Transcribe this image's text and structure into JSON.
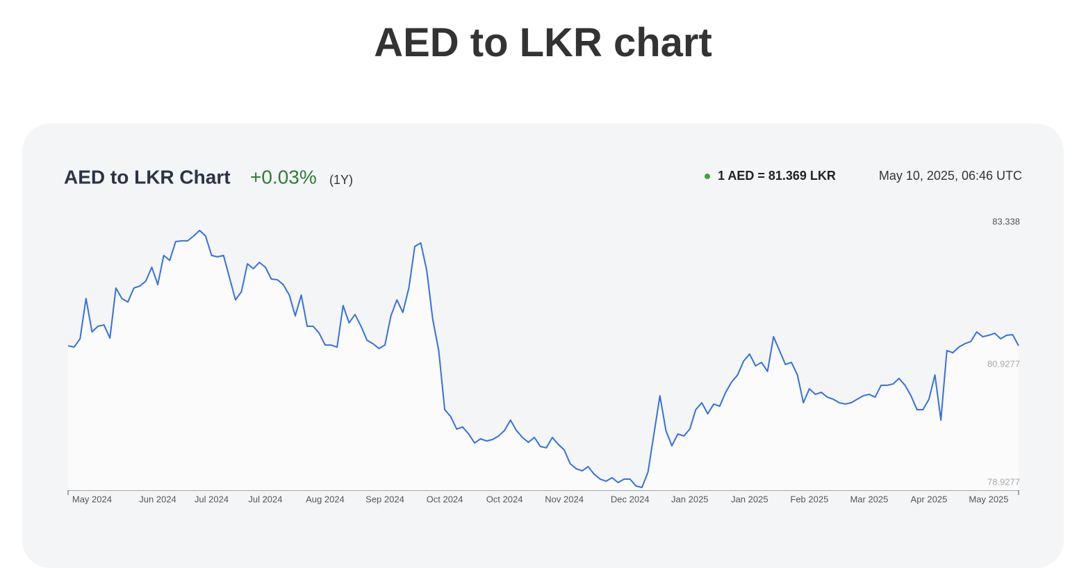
{
  "page_title": "AED to LKR chart",
  "chart_data": {
    "type": "line",
    "title": "AED to LKR Chart",
    "change": "+0.03%",
    "period": "(1Y)",
    "rate": "1 AED = 81.369 LKR",
    "timestamp": "May 10, 2025, 06:46 UTC",
    "ylim": [
      78.798,
      83.338
    ],
    "yticks": [
      83.338,
      80.9277,
      78.9277
    ],
    "categories": [
      null,
      null,
      null,
      null,
      "May 2024",
      null,
      null,
      null,
      null,
      null,
      null,
      null,
      null,
      null,
      null,
      "Jun 2024",
      null,
      null,
      null,
      null,
      null,
      null,
      null,
      null,
      "Jul 2024",
      null,
      null,
      null,
      null,
      null,
      null,
      null,
      null,
      "Jul 2024",
      null,
      null,
      null,
      null,
      null,
      null,
      null,
      null,
      null,
      "Aug 2024",
      null,
      null,
      null,
      null,
      null,
      null,
      null,
      null,
      null,
      "Sep 2024",
      null,
      null,
      null,
      null,
      null,
      null,
      null,
      null,
      null,
      "Oct 2024",
      null,
      null,
      null,
      null,
      null,
      null,
      null,
      null,
      null,
      "Oct 2024",
      null,
      null,
      null,
      null,
      null,
      null,
      null,
      null,
      null,
      "Nov 2024",
      null,
      null,
      null,
      null,
      null,
      null,
      null,
      null,
      null,
      null,
      "Dec 2024",
      null,
      null,
      null,
      null,
      null,
      null,
      null,
      null,
      null,
      "Jan 2025",
      null,
      null,
      null,
      null,
      null,
      null,
      null,
      null,
      null,
      "Jan 2025",
      null,
      null,
      null,
      null,
      null,
      null,
      null,
      null,
      null,
      "Feb 2025",
      null,
      null,
      null,
      null,
      null,
      null,
      null,
      null,
      null,
      "Mar 2025",
      null,
      null,
      null,
      null,
      null,
      null,
      null,
      null,
      null,
      "Apr 2025",
      null,
      null,
      null,
      null,
      null,
      null,
      null,
      null,
      null,
      "May 2025",
      null,
      null,
      null,
      null,
      null
    ],
    "series": [
      {
        "name": "AED to LKR",
        "color": "#3470de",
        "values": [
          81.245,
          81.222,
          81.363,
          82.045,
          81.48,
          81.575,
          81.598,
          81.375,
          82.222,
          82.045,
          81.986,
          82.222,
          82.257,
          82.339,
          82.575,
          82.28,
          82.775,
          82.692,
          83.01,
          83.022,
          83.022,
          83.104,
          83.198,
          83.104,
          82.775,
          82.751,
          82.775,
          82.398,
          82.022,
          82.163,
          82.633,
          82.551,
          82.657,
          82.575,
          82.375,
          82.363,
          82.28,
          82.104,
          81.751,
          82.104,
          81.575,
          81.575,
          81.457,
          81.257,
          81.257,
          81.222,
          81.927,
          81.633,
          81.775,
          81.575,
          81.339,
          81.28,
          81.198,
          81.257,
          81.751,
          82.022,
          81.81,
          82.222,
          82.928,
          82.986,
          82.516,
          81.692,
          81.163,
          80.163,
          80.045,
          79.833,
          79.869,
          79.751,
          79.598,
          79.669,
          79.633,
          79.657,
          79.716,
          79.81,
          79.986,
          79.81,
          79.692,
          79.61,
          79.692,
          79.539,
          79.516,
          79.692,
          79.574,
          79.48,
          79.245,
          79.163,
          79.127,
          79.198,
          79.069,
          78.986,
          78.951,
          79.01,
          78.927,
          78.986,
          78.986,
          78.869,
          78.845,
          79.104,
          79.751,
          80.398,
          79.81,
          79.551,
          79.751,
          79.716,
          79.833,
          80.163,
          80.28,
          80.092,
          80.257,
          80.222,
          80.457,
          80.633,
          80.751,
          80.986,
          81.104,
          80.904,
          80.963,
          80.81,
          81.398,
          81.163,
          80.927,
          80.963,
          80.751,
          80.28,
          80.516,
          80.422,
          80.457,
          80.375,
          80.339,
          80.28,
          80.257,
          80.28,
          80.339,
          80.398,
          80.422,
          80.375,
          80.575,
          80.575,
          80.598,
          80.692,
          80.575,
          80.398,
          80.163,
          80.163,
          80.339,
          80.751,
          79.986,
          81.163,
          81.127,
          81.222,
          81.28,
          81.316,
          81.48,
          81.398,
          81.422,
          81.457,
          81.363,
          81.422,
          81.433,
          81.245
        ]
      }
    ]
  }
}
